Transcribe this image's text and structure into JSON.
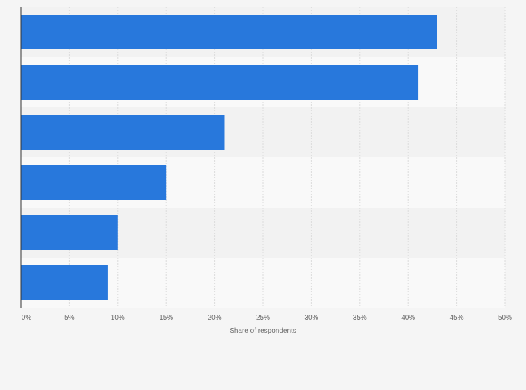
{
  "chart_data": {
    "type": "bar",
    "orientation": "horizontal",
    "categories": [
      "",
      "",
      "",
      "",
      "",
      ""
    ],
    "values": [
      43,
      41,
      21,
      15,
      10,
      9
    ],
    "title": "",
    "xlabel": "Share of respondents",
    "ylabel": "",
    "xlim": [
      0,
      50
    ],
    "x_ticks": [
      0,
      5,
      10,
      15,
      20,
      25,
      30,
      35,
      40,
      45,
      50
    ],
    "x_tick_labels": [
      "0%",
      "5%",
      "10%",
      "15%",
      "20%",
      "25%",
      "30%",
      "35%",
      "40%",
      "45%",
      "50%"
    ],
    "grid": true,
    "bar_color": "#2878dc",
    "band_colors": [
      "#f2f2f2",
      "#f9f9f9"
    ]
  }
}
